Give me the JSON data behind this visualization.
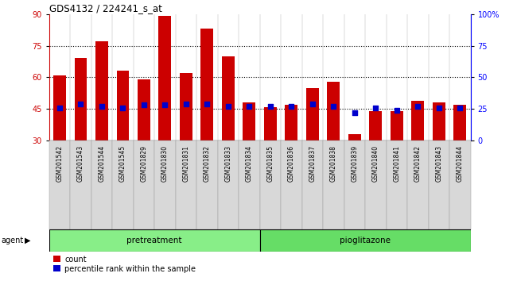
{
  "title": "GDS4132 / 224241_s_at",
  "samples": [
    "GSM201542",
    "GSM201543",
    "GSM201544",
    "GSM201545",
    "GSM201829",
    "GSM201830",
    "GSM201831",
    "GSM201832",
    "GSM201833",
    "GSM201834",
    "GSM201835",
    "GSM201836",
    "GSM201837",
    "GSM201838",
    "GSM201839",
    "GSM201840",
    "GSM201841",
    "GSM201842",
    "GSM201843",
    "GSM201844"
  ],
  "counts": [
    61,
    69,
    77,
    63,
    59,
    89,
    62,
    83,
    70,
    48,
    46,
    47,
    55,
    58,
    33,
    44,
    44,
    49,
    48,
    47
  ],
  "percentile": [
    26,
    29,
    27,
    26,
    28,
    28,
    29,
    29,
    27,
    27,
    27,
    27,
    29,
    27,
    22,
    26,
    24,
    27,
    26,
    26
  ],
  "bar_color": "#cc0000",
  "dot_color": "#0000cc",
  "ylim_left": [
    30,
    90
  ],
  "ylim_right": [
    0,
    100
  ],
  "yticks_left": [
    30,
    45,
    60,
    75,
    90
  ],
  "yticks_right": [
    0,
    25,
    50,
    75,
    100
  ],
  "yticklabels_right": [
    "0",
    "25",
    "50",
    "75",
    "100%"
  ],
  "hlines": [
    45,
    60,
    75
  ],
  "n_pretreatment": 10,
  "pretreatment_label": "pretreatment",
  "pioglitazone_label": "pioglitazone",
  "agent_label": "agent",
  "legend_count": "count",
  "legend_percentile": "percentile rank within the sample",
  "bg_color": "#d8d8d8",
  "cell_color": "#e0e0e0",
  "plot_bg": "#ffffff",
  "agent_strip_color": "#88ee88"
}
